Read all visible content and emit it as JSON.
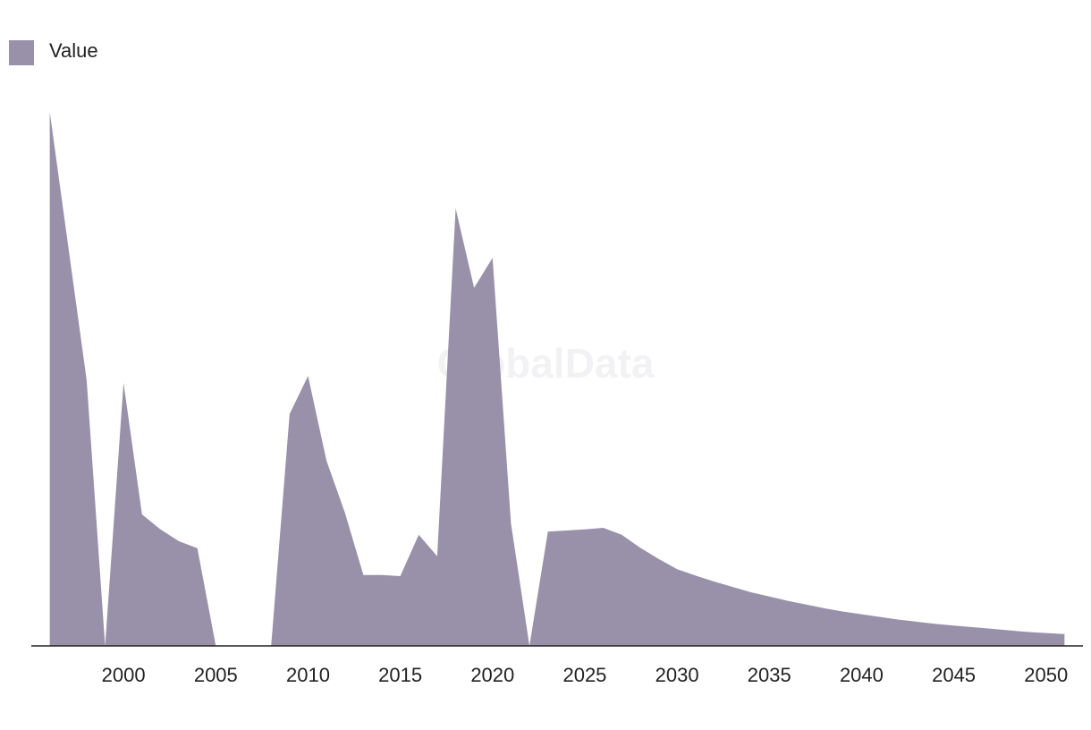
{
  "chart_data": {
    "type": "area",
    "watermark": "GlobalData",
    "x": [
      1996,
      1997,
      1998,
      1999,
      2000,
      2001,
      2002,
      2003,
      2004,
      2005,
      2006,
      2007,
      2008,
      2009,
      2010,
      2011,
      2012,
      2013,
      2014,
      2015,
      2016,
      2017,
      2018,
      2019,
      2020,
      2021,
      2022,
      2023,
      2024,
      2025,
      2026,
      2027,
      2028,
      2029,
      2030,
      2031,
      2032,
      2033,
      2034,
      2035,
      2036,
      2037,
      2038,
      2039,
      2040,
      2041,
      2042,
      2043,
      2044,
      2045,
      2046,
      2047,
      2048,
      2049,
      2050,
      2051
    ],
    "series": [
      {
        "name": "Value",
        "color": "#9990aa",
        "values": [
          99.5,
          74.5,
          49.5,
          0,
          49,
          24.5,
          21.7,
          19.5,
          18.2,
          0,
          0,
          0,
          0,
          43.2,
          50.3,
          34.5,
          24.8,
          13.2,
          13.2,
          13,
          20.7,
          16.7,
          81.5,
          66.7,
          72.3,
          22.8,
          0,
          21.3,
          21.5,
          21.7,
          22,
          20.7,
          18.3,
          16.2,
          14.3,
          13.1,
          12,
          11,
          10,
          9.2,
          8.4,
          7.7,
          7,
          6.4,
          5.9,
          5.4,
          4.9,
          4.5,
          4.1,
          3.8,
          3.5,
          3.2,
          2.9,
          2.6,
          2.4,
          2.2
        ]
      }
    ],
    "xlim": [
      1995,
      2052
    ],
    "xticks": [
      2000,
      2005,
      2010,
      2015,
      2020,
      2025,
      2030,
      2035,
      2040,
      2045,
      2050
    ],
    "ylim": [
      0,
      100
    ],
    "legend": "top-left"
  }
}
